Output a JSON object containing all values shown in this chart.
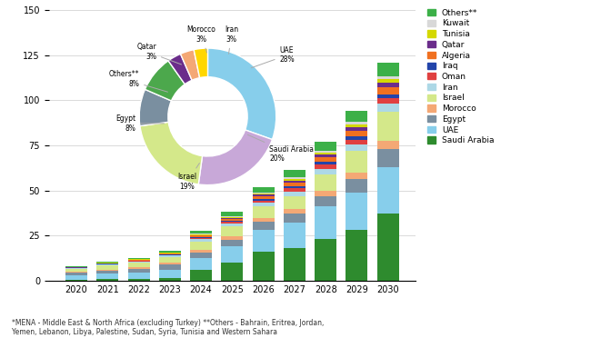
{
  "years": [
    2020,
    2021,
    2022,
    2023,
    2024,
    2025,
    2026,
    2027,
    2028,
    2029,
    2030
  ],
  "countries": [
    "Saudi Arabia",
    "UAE",
    "Egypt",
    "Morocco",
    "Israel",
    "Iran",
    "Oman",
    "Iraq",
    "Algeria",
    "Qatar",
    "Tunisia",
    "Kuwait",
    "Others**"
  ],
  "colors": {
    "Saudi Arabia": "#2e8b2e",
    "UAE": "#87ceeb",
    "Egypt": "#7a8fa0",
    "Morocco": "#f4a875",
    "Israel": "#d4e88a",
    "Iran": "#add8e6",
    "Oman": "#e04040",
    "Iraq": "#2244aa",
    "Algeria": "#f07020",
    "Qatar": "#6b2d8b",
    "Tunisia": "#d4d800",
    "Kuwait": "#d8d8d8",
    "Others**": "#3cb048"
  },
  "bar_data": {
    "Saudi Arabia": [
      0.5,
      0.7,
      1.0,
      1.5,
      6.0,
      10.0,
      16.0,
      18.0,
      23.0,
      28.0,
      37.0
    ],
    "UAE": [
      2.5,
      3.0,
      3.5,
      4.5,
      6.5,
      9.0,
      12.0,
      14.0,
      18.0,
      21.0,
      26.0
    ],
    "Egypt": [
      1.2,
      1.6,
      2.0,
      2.8,
      3.2,
      3.8,
      4.5,
      5.0,
      6.0,
      7.5,
      10.0
    ],
    "Morocco": [
      0.6,
      0.8,
      0.9,
      1.0,
      1.3,
      1.6,
      2.0,
      2.5,
      3.0,
      3.5,
      4.5
    ],
    "Israel": [
      1.5,
      2.2,
      2.5,
      3.0,
      4.5,
      5.5,
      6.5,
      7.5,
      9.0,
      12.0,
      16.0
    ],
    "Iran": [
      0.5,
      0.7,
      0.8,
      1.0,
      1.4,
      1.7,
      2.0,
      2.5,
      3.0,
      3.5,
      4.5
    ],
    "Oman": [
      0.1,
      0.15,
      0.2,
      0.4,
      0.7,
      0.9,
      1.3,
      1.8,
      2.2,
      2.7,
      3.2
    ],
    "Iraq": [
      0.05,
      0.1,
      0.15,
      0.25,
      0.4,
      0.6,
      0.9,
      1.1,
      1.5,
      1.8,
      2.2
    ],
    "Algeria": [
      0.2,
      0.3,
      0.4,
      0.6,
      0.9,
      1.1,
      1.6,
      2.0,
      2.5,
      3.0,
      3.6
    ],
    "Qatar": [
      0.05,
      0.1,
      0.15,
      0.2,
      0.4,
      0.6,
      0.9,
      1.1,
      1.5,
      2.0,
      2.7
    ],
    "Tunisia": [
      0.1,
      0.15,
      0.2,
      0.25,
      0.4,
      0.6,
      0.8,
      1.0,
      1.4,
      1.8,
      2.2
    ],
    "Kuwait": [
      0.03,
      0.07,
      0.1,
      0.15,
      0.25,
      0.35,
      0.5,
      0.7,
      0.9,
      1.2,
      1.5
    ],
    "Others**": [
      0.4,
      0.6,
      0.8,
      1.0,
      1.6,
      2.2,
      3.0,
      4.0,
      5.0,
      6.0,
      7.5
    ]
  },
  "pie_data_order": [
    "UAE",
    "Saudi Arabia",
    "Israel",
    "Egypt",
    "Others**",
    "Qatar",
    "Morocco",
    "Iran"
  ],
  "pie_sizes": [
    28,
    20,
    19,
    8,
    8,
    3,
    3,
    3
  ],
  "pie_colors": [
    "#87ceeb",
    "#c8a8d8",
    "#d4e88a",
    "#7a8fa0",
    "#4ca84c",
    "#6b2d8b",
    "#f4a875",
    "#ffd700"
  ],
  "footnote": "*MENA - Middle East & North Africa (excluding Turkey) **Others - Bahrain, Eritrea, Jordan,\nYemen, Lebanon, Libya, Palestine, Sudan, Syria, Tunisia and Western Sahara",
  "ylim": [
    0,
    150
  ],
  "yticks": [
    0,
    25,
    50,
    75,
    100,
    125,
    150
  ],
  "background_color": "#ffffff"
}
